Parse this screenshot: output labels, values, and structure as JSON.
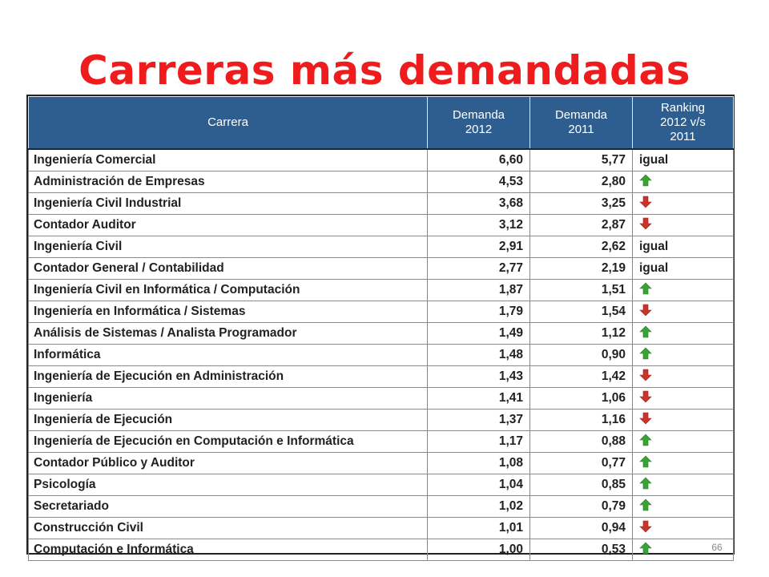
{
  "title": "Carreras más demandadas",
  "page_number": "66",
  "table": {
    "headers": {
      "carrera": "Carrera",
      "demanda_2012": [
        "Demanda",
        "2012"
      ],
      "demanda_2011": [
        "Demanda",
        "2011"
      ],
      "ranking": [
        "Ranking",
        "2012 v/s",
        "2011"
      ]
    },
    "rows": [
      {
        "carrera": "Ingeniería Comercial",
        "d2012": "6,60",
        "d2011": "5,77",
        "ranking": "igual"
      },
      {
        "carrera": "Administración de Empresas",
        "d2012": "4,53",
        "d2011": "2,80",
        "ranking": "up"
      },
      {
        "carrera": "Ingeniería Civil Industrial",
        "d2012": "3,68",
        "d2011": "3,25",
        "ranking": "down"
      },
      {
        "carrera": "Contador Auditor",
        "d2012": "3,12",
        "d2011": "2,87",
        "ranking": "down"
      },
      {
        "carrera": "Ingeniería Civil",
        "d2012": "2,91",
        "d2011": "2,62",
        "ranking": "igual"
      },
      {
        "carrera": "Contador General / Contabilidad",
        "d2012": "2,77",
        "d2011": "2,19",
        "ranking": "igual"
      },
      {
        "carrera": "Ingeniería Civil en Informática / Computación",
        "d2012": "1,87",
        "d2011": "1,51",
        "ranking": "up"
      },
      {
        "carrera": "Ingeniería en Informática / Sistemas",
        "d2012": "1,79",
        "d2011": "1,54",
        "ranking": "down"
      },
      {
        "carrera": "Análisis de Sistemas / Analista Programador",
        "d2012": "1,49",
        "d2011": "1,12",
        "ranking": "up"
      },
      {
        "carrera": "Informática",
        "d2012": "1,48",
        "d2011": "0,90",
        "ranking": "up"
      },
      {
        "carrera": "Ingeniería de Ejecución en Administración",
        "d2012": "1,43",
        "d2011": "1,42",
        "ranking": "down"
      },
      {
        "carrera": "Ingeniería",
        "d2012": "1,41",
        "d2011": "1,06",
        "ranking": "down"
      },
      {
        "carrera": "Ingeniería de Ejecución",
        "d2012": "1,37",
        "d2011": "1,16",
        "ranking": "down"
      },
      {
        "carrera": "Ingeniería de Ejecución en Computación e Informática",
        "d2012": "1,17",
        "d2011": "0,88",
        "ranking": "up"
      },
      {
        "carrera": "Contador Público y Auditor",
        "d2012": "1,08",
        "d2011": "0,77",
        "ranking": "up"
      },
      {
        "carrera": "Psicología",
        "d2012": "1,04",
        "d2011": "0,85",
        "ranking": "up"
      },
      {
        "carrera": "Secretariado",
        "d2012": "1,02",
        "d2011": "0,79",
        "ranking": "up"
      },
      {
        "carrera": "Construcción Civil",
        "d2012": "1,01",
        "d2011": "0,94",
        "ranking": "down"
      },
      {
        "carrera": "Computación e Informática",
        "d2012": "1,00",
        "d2011": "0,53",
        "ranking": "up"
      }
    ]
  },
  "colors": {
    "title": "#ee1c1c",
    "header_bg": "#2e5e8f",
    "arrow_up": "#3aa335",
    "arrow_down": "#c8342a"
  }
}
